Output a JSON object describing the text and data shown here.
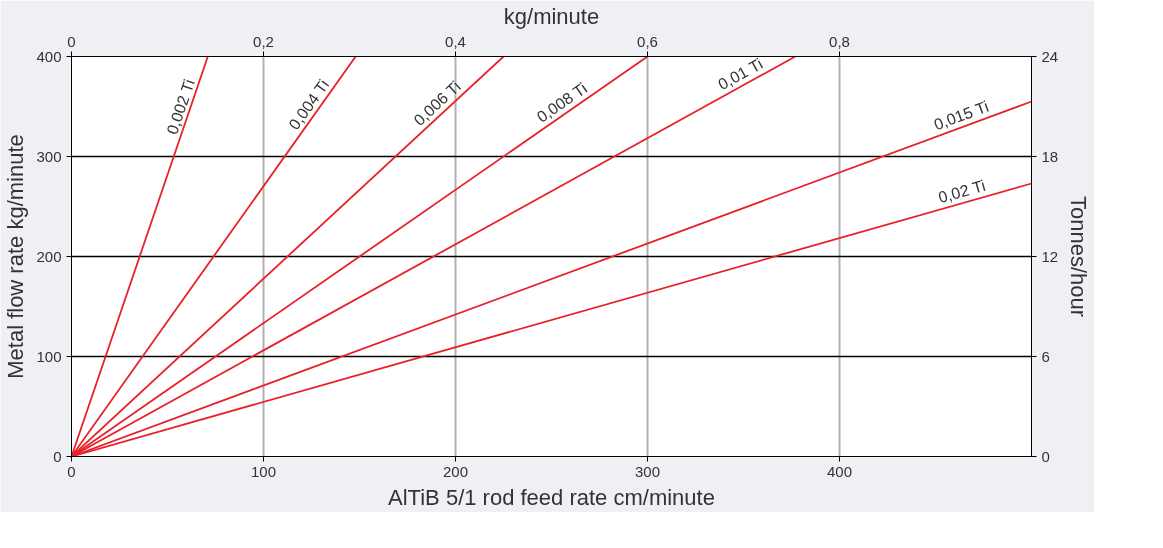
{
  "chart_data": {
    "type": "line",
    "xlabel": "AlTiB 5/1 rod feed rate cm/minute",
    "ylabel": "Metal flow rate kg/minute",
    "y2label": "Tonnes/hour",
    "x2label": "kg/minute",
    "xlim": [
      0,
      500
    ],
    "xticks": [
      0,
      100,
      200,
      300,
      400
    ],
    "ylim": [
      0,
      400
    ],
    "yticks": [
      0,
      100,
      200,
      300,
      400
    ],
    "x2lim": [
      0,
      1.0
    ],
    "x2ticks": [
      0,
      {
        "value": 0.2,
        "label": "0,2"
      },
      {
        "value": 0.4,
        "label": "0,4"
      },
      {
        "value": 0.6,
        "label": "0,6"
      },
      {
        "value": 0.8,
        "label": "0,8"
      }
    ],
    "y2lim": [
      0,
      24
    ],
    "y2ticks": [
      0,
      6,
      12,
      18,
      24
    ],
    "grid": true,
    "marker": "none",
    "line_style": "solid",
    "series": [
      {
        "name": "0,002 Ti",
        "color": "#e8202a",
        "x": [
          0,
          71
        ],
        "values": [
          0,
          400
        ]
      },
      {
        "name": "0,004 Ti",
        "color": "#e8202a",
        "x": [
          0,
          148
        ],
        "values": [
          0,
          400
        ]
      },
      {
        "name": "0,006 Ti",
        "color": "#e8202a",
        "x": [
          0,
          225
        ],
        "values": [
          0,
          400
        ]
      },
      {
        "name": "0,008 Ti",
        "color": "#e8202a",
        "x": [
          0,
          300
        ],
        "values": [
          0,
          400
        ]
      },
      {
        "name": "0,01 Ti",
        "color": "#e8202a",
        "x": [
          0,
          377
        ],
        "values": [
          0,
          400
        ]
      },
      {
        "name": "0,015 Ti",
        "color": "#e8202a",
        "x": [
          0,
          500
        ],
        "values": [
          0,
          355
        ]
      },
      {
        "name": "0,02 Ti",
        "color": "#e8202a",
        "x": [
          0,
          500
        ],
        "values": [
          0,
          273
        ]
      }
    ]
  }
}
